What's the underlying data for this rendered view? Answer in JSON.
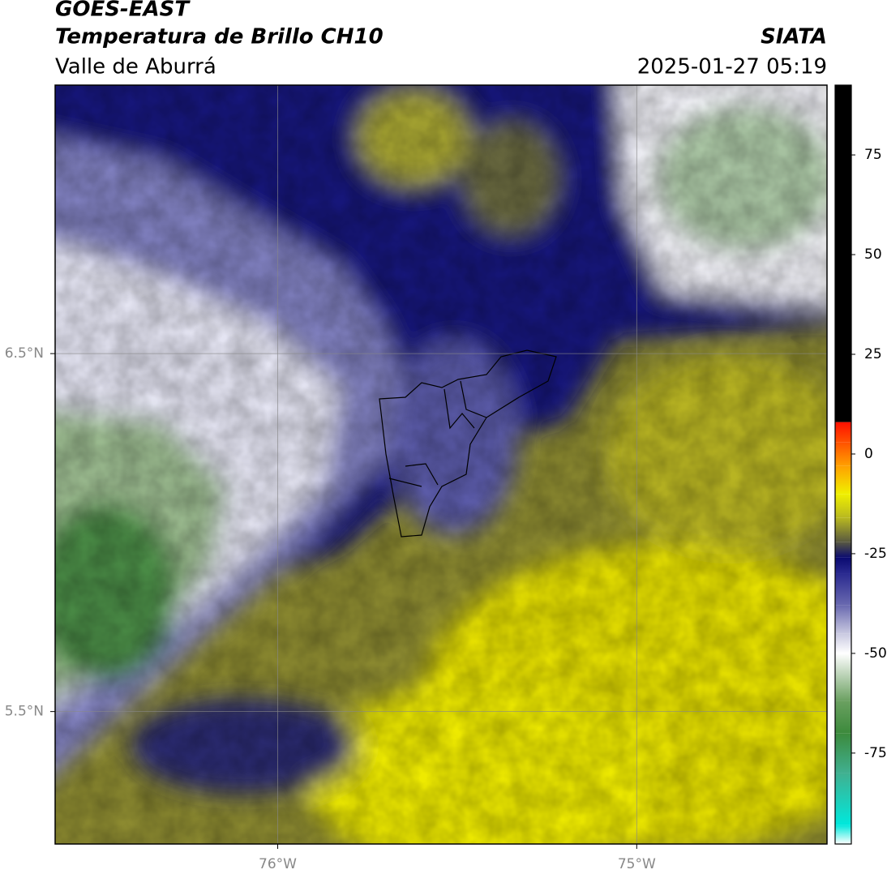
{
  "header": {
    "title": "GOES-EAST",
    "subtitle": "Temperatura de Brillo CH10",
    "region": "Valle de Aburrá",
    "source": "SIATA",
    "datetime": "2025-01-27 05:19"
  },
  "map": {
    "lonlim": [
      -76.62,
      -74.47
    ],
    "latlim": [
      5.13,
      7.25
    ],
    "lon_ticks": [
      {
        "value": -76,
        "label": "76°W"
      },
      {
        "value": -75,
        "label": "75°W"
      }
    ],
    "lat_ticks": [
      {
        "value": 6.5,
        "label": "6.5°N"
      },
      {
        "value": 5.5,
        "label": "5.5°N"
      }
    ],
    "grid": true
  },
  "colorbar": {
    "lim": [
      -97.8,
      92.5
    ],
    "ticks": [
      75,
      50,
      25,
      0,
      -25,
      -50,
      -75
    ],
    "stops": [
      {
        "value": -97.8,
        "color": "#ffffff"
      },
      {
        "value": -93,
        "color": "#00e8dc"
      },
      {
        "value": -80,
        "color": "#40b090"
      },
      {
        "value": -70,
        "color": "#3c8a3c"
      },
      {
        "value": -62,
        "color": "#6aa060"
      },
      {
        "value": -55,
        "color": "#c0d6bc"
      },
      {
        "value": -50,
        "color": "#ffffff"
      },
      {
        "value": -45,
        "color": "#c8c8e0"
      },
      {
        "value": -38,
        "color": "#6a6ab0"
      },
      {
        "value": -30,
        "color": "#2a2a90"
      },
      {
        "value": -26,
        "color": "#0a0a70"
      },
      {
        "value": -22,
        "color": "#5a5a40"
      },
      {
        "value": -16,
        "color": "#b8b820"
      },
      {
        "value": -10,
        "color": "#f0f000"
      },
      {
        "value": -3,
        "color": "#ffa000"
      },
      {
        "value": 3,
        "color": "#ff5000"
      },
      {
        "value": 8,
        "color": "#ff1000"
      },
      {
        "value": 8.01,
        "color": "#000000"
      },
      {
        "value": 92.5,
        "color": "#000000"
      }
    ]
  }
}
